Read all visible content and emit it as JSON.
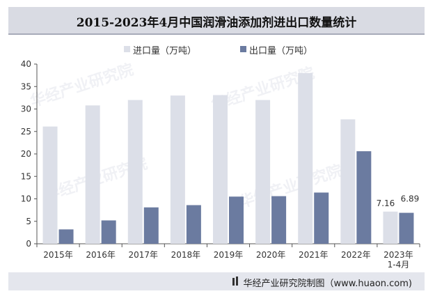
{
  "title": "2015-2023年4月中国润滑油添加剂进出口数量统计",
  "watermark_text": "华经产业研究院",
  "watermark_url": "www.huaon.com",
  "footer": {
    "text": "华经产业研究院制图（www.huaon.com)"
  },
  "colors": {
    "import": "#dcdfe8",
    "export": "#6b7ba0",
    "title_bg": "#d9dbe3"
  },
  "chart_data": {
    "type": "bar",
    "title": "2015-2023年4月中国润滑油添加剂进出口数量统计",
    "categories": [
      "2015年",
      "2016年",
      "2017年",
      "2018年",
      "2019年",
      "2020年",
      "2021年",
      "2022年",
      "2023年\n1-4月"
    ],
    "series": [
      {
        "name": "进口量（万吨）",
        "values": [
          26.1,
          30.8,
          32.0,
          33.0,
          33.1,
          32.0,
          38.0,
          27.7,
          7.16
        ]
      },
      {
        "name": "出口量（万吨）",
        "values": [
          3.2,
          5.2,
          8.1,
          8.6,
          10.5,
          10.6,
          11.4,
          20.6,
          6.89
        ]
      }
    ],
    "data_labels": [
      {
        "series": 0,
        "index": 8,
        "text": "7.16"
      },
      {
        "series": 1,
        "index": 8,
        "text": "6.89"
      }
    ],
    "ylim": [
      0,
      40
    ],
    "yticks": [
      0,
      5,
      10,
      15,
      20,
      25,
      30,
      35,
      40
    ],
    "legend_position": "top",
    "grid": false
  }
}
